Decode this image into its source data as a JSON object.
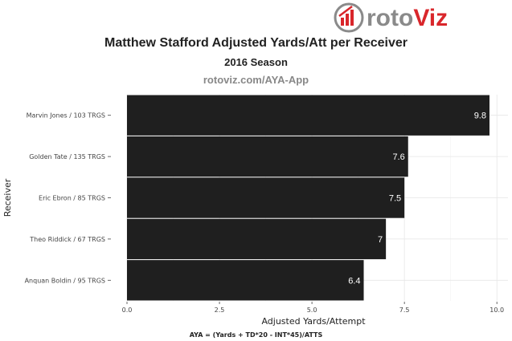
{
  "logo": {
    "text_roto": "roto",
    "text_viz": "Viz",
    "icon": "bar-chart-logo-icon",
    "accent": "#d9262b",
    "gray": "#8a8a8a"
  },
  "chart_data": {
    "type": "bar",
    "orientation": "horizontal",
    "title": "Matthew Stafford Adjusted Yards/Att per Receiver",
    "subtitle": "2016 Season",
    "source": "rotoviz.com/AYA-App",
    "caption": "AYA = (Yards + TD*20 - INT*45)/ATTS",
    "xlabel": "Adjusted Yards/Attempt",
    "ylabel": "Receiver",
    "categories": [
      "Marvin Jones / 103 TRGS",
      "Golden Tate / 135 TRGS",
      "Eric Ebron / 85 TRGS",
      "Theo Riddick / 67 TRGS",
      "Anquan Boldin / 95 TRGS"
    ],
    "values": [
      9.8,
      7.6,
      7.5,
      7,
      6.4
    ],
    "value_labels": [
      "9.8",
      "7.6",
      "7.5",
      "7",
      "6.4"
    ],
    "xlim": [
      0,
      10.3
    ],
    "xticks": [
      0,
      2.5,
      5,
      7.5,
      10
    ],
    "xtick_labels": [
      "0.0",
      "2.5",
      "5.0",
      "7.5",
      "10.0"
    ],
    "grid": true,
    "bar_color": "#1f1f1f",
    "label_color": "#ffffff"
  }
}
